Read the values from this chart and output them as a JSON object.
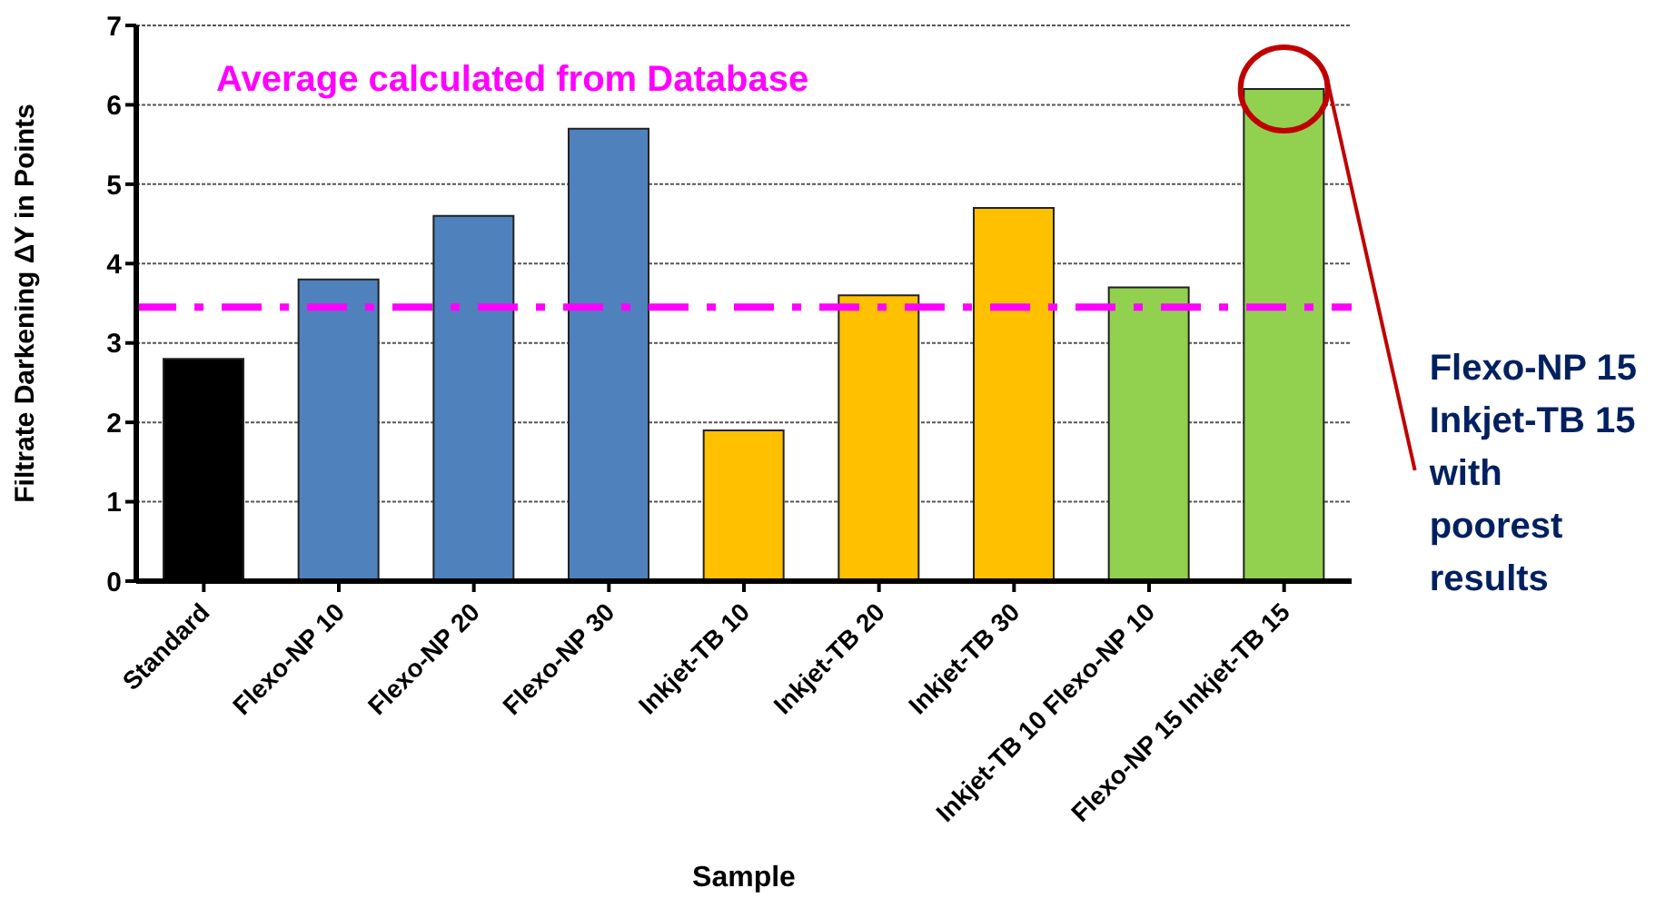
{
  "chart_data": {
    "type": "bar",
    "xlabel": "Sample",
    "ylabel": "Filtrate Darkening ΔY in Points",
    "categories": [
      "Standard",
      "Flexo-NP 10",
      "Flexo-NP 20",
      "Flexo-NP 30",
      "Inkjet-TB 10",
      "Inkjet-TB 20",
      "Inkjet-TB 30",
      "Inkjet-TB 10 Flexo-NP 10",
      "Flexo-NP 15 Inkjet-TB 15"
    ],
    "values": [
      2.8,
      3.8,
      4.6,
      5.7,
      1.9,
      3.6,
      4.7,
      3.7,
      6.2
    ],
    "colors": [
      "#000000",
      "#4f81bd",
      "#4f81bd",
      "#4f81bd",
      "#ffc000",
      "#ffc000",
      "#ffc000",
      "#92d050",
      "#92d050"
    ],
    "ylim": [
      0,
      7
    ],
    "yticks": [
      0,
      1,
      2,
      3,
      4,
      5,
      6,
      7
    ],
    "grid": "y",
    "ref_lines": [
      {
        "axis": "y",
        "value": 3.45,
        "label": "Average calculated from Database",
        "color": "#ff00ff",
        "line_style": "dashdot"
      }
    ],
    "annotations": [
      "Flexo-NP 15\nInkjet-TB 15\nwith\npoorest\nresults"
    ]
  }
}
